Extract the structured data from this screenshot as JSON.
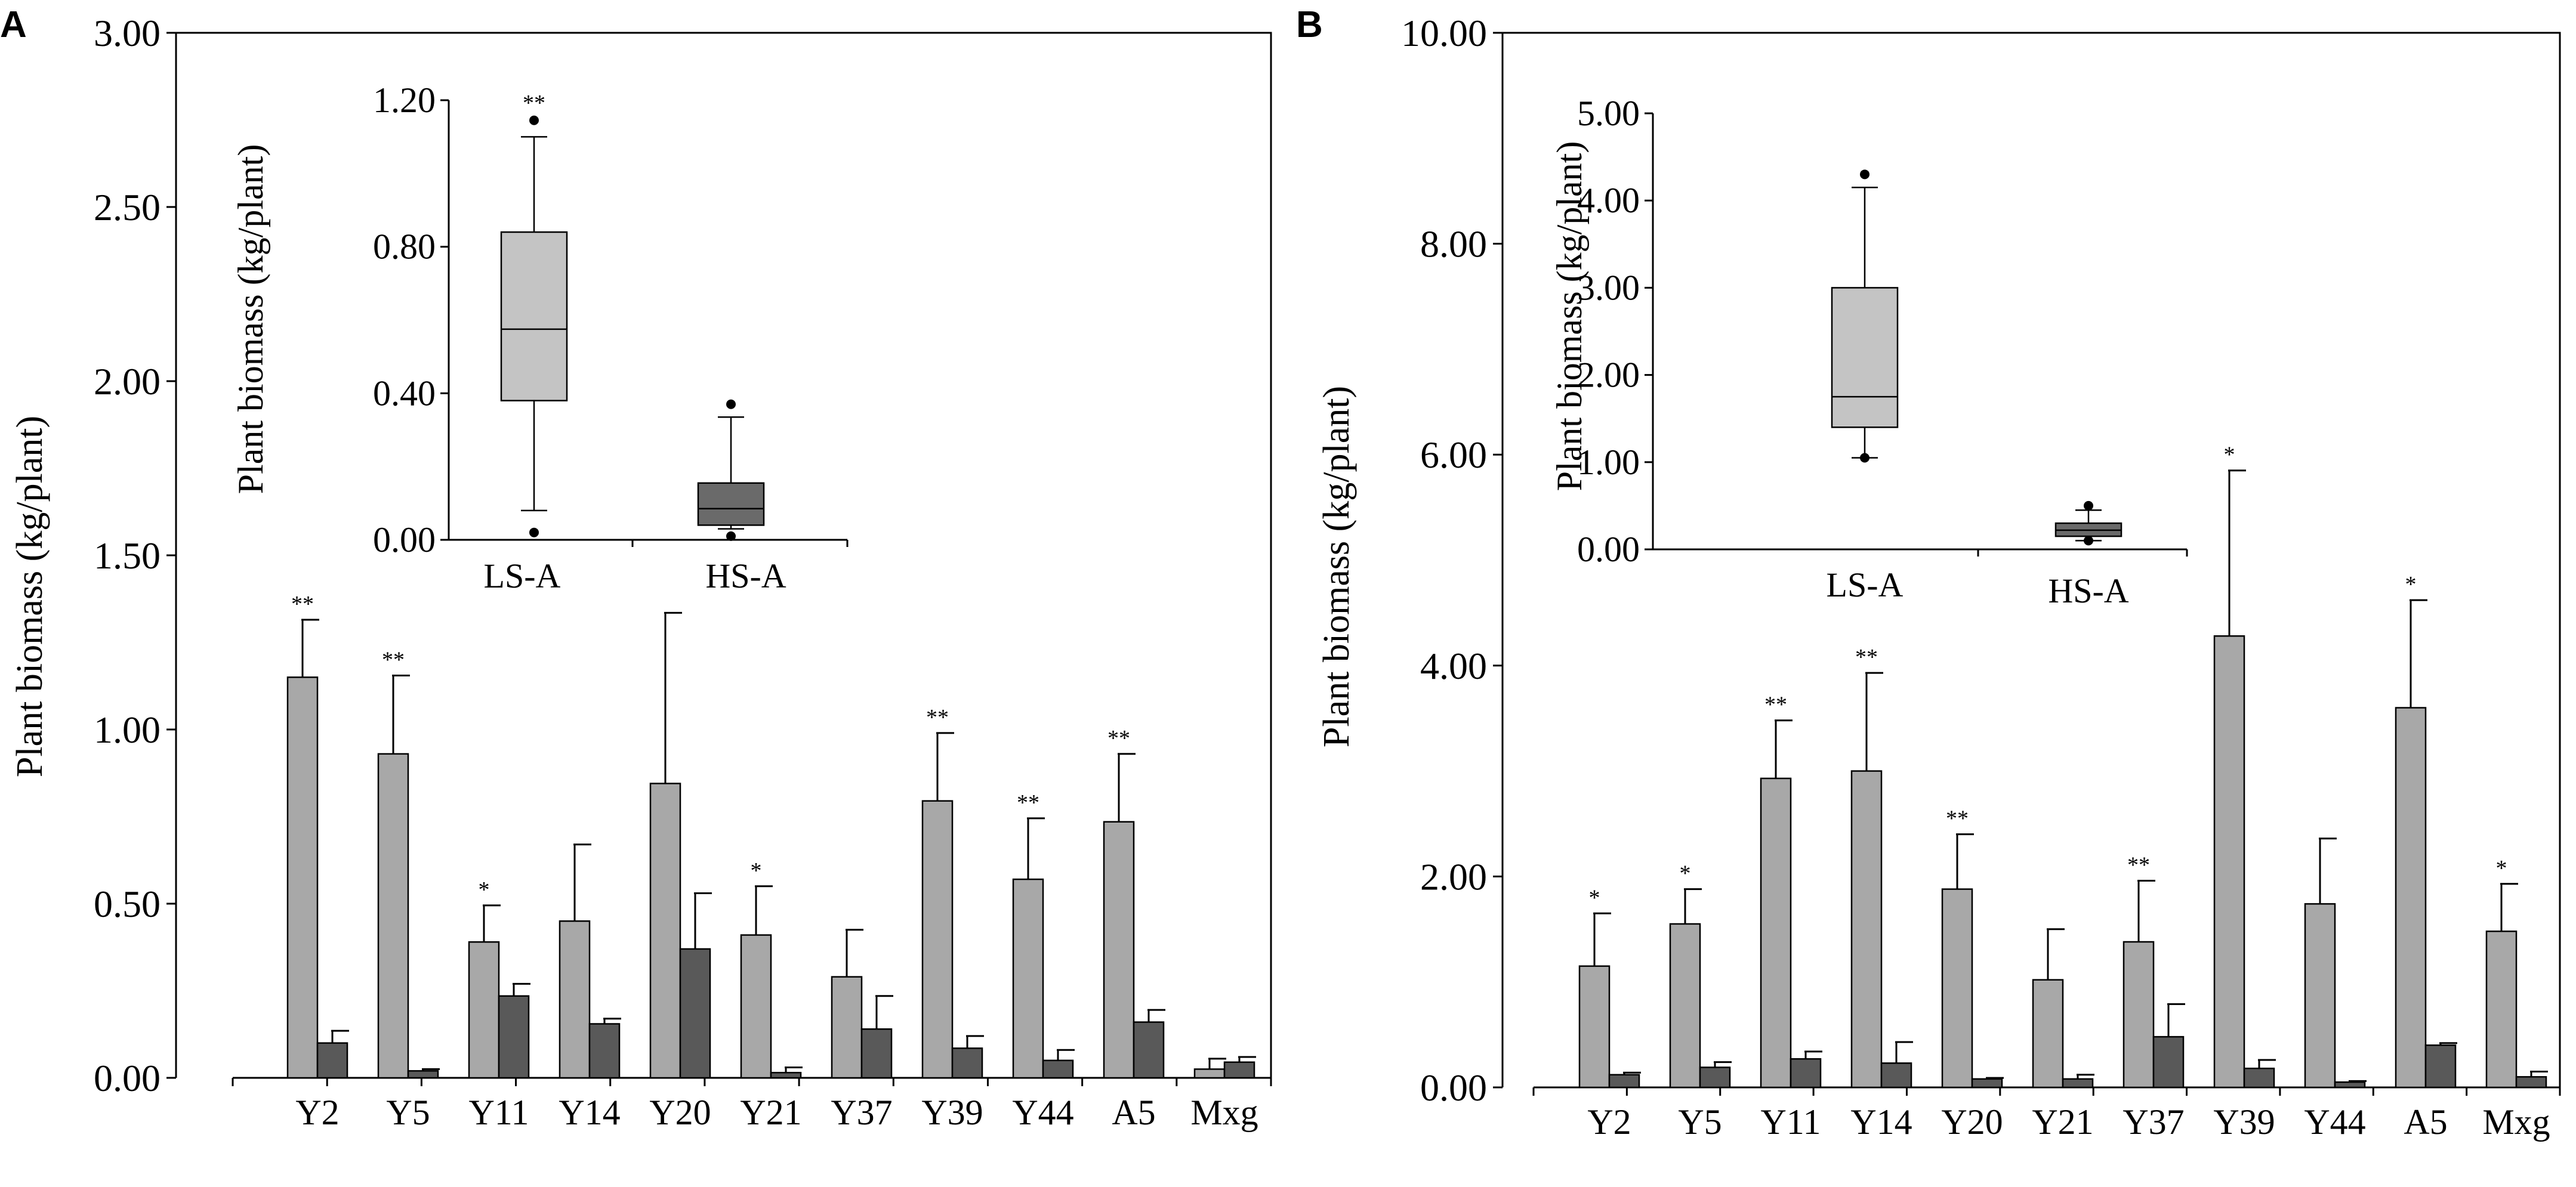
{
  "figure": {
    "colors": {
      "ls": "#a8a8a8",
      "hs": "#595959",
      "box_ls": "#c4c4c4",
      "box_hs": "#6a6a6a",
      "axis": "#000000"
    }
  },
  "chart_data": [
    {
      "panel": "A",
      "type": "bar",
      "ylabel": "Plant biomass  (kg/plant)",
      "ylim": [
        0,
        3
      ],
      "yticks": [
        "0.00",
        "0.50",
        "1.00",
        "1.50",
        "2.00",
        "2.50",
        "3.00"
      ],
      "categories": [
        "Y2",
        "Y5",
        "Y11",
        "Y14",
        "Y20",
        "Y21",
        "Y37",
        "Y39",
        "Y44",
        "A5",
        "Mxg"
      ],
      "series": [
        {
          "name": "LS-A",
          "values": [
            1.15,
            0.93,
            0.39,
            0.45,
            0.845,
            0.41,
            0.29,
            0.795,
            0.57,
            0.735,
            0.025
          ],
          "errors": [
            0.165,
            0.225,
            0.105,
            0.22,
            0.49,
            0.14,
            0.135,
            0.195,
            0.175,
            0.195,
            0.03
          ]
        },
        {
          "name": "HS-A",
          "values": [
            0.1,
            0.02,
            0.235,
            0.155,
            0.37,
            0.015,
            0.14,
            0.085,
            0.05,
            0.16,
            0.045
          ],
          "errors": [
            0.035,
            0.005,
            0.035,
            0.015,
            0.16,
            0.015,
            0.095,
            0.035,
            0.03,
            0.035,
            0.015
          ]
        }
      ],
      "significance": [
        "**",
        "**",
        "*",
        "",
        "",
        "*",
        "",
        "**",
        "**",
        "**",
        ""
      ],
      "inset": {
        "type": "box",
        "ylabel": "Plant biomass (kg/plant)",
        "ylim": [
          0,
          1.2
        ],
        "yticks": [
          "0.00",
          "0.40",
          "0.80",
          "1.20"
        ],
        "groups": [
          {
            "name": "LS-A",
            "whisker_low": 0.08,
            "q1": 0.38,
            "median": 0.575,
            "q3": 0.84,
            "whisker_high": 1.1,
            "outliers": [
              1.145,
              0.02
            ],
            "mark": "**"
          },
          {
            "name": "HS-A",
            "whisker_low": 0.03,
            "q1": 0.04,
            "median": 0.085,
            "q3": 0.155,
            "whisker_high": 0.335,
            "outliers": [
              0.37,
              0.01
            ],
            "mark": ""
          }
        ]
      }
    },
    {
      "panel": "B",
      "type": "bar",
      "ylabel": "Plant biomass (kg/plant)",
      "ylim": [
        0,
        10
      ],
      "yticks": [
        "0.00",
        "2.00",
        "4.00",
        "6.00",
        "8.00",
        "10.00"
      ],
      "categories": [
        "Y2",
        "Y5",
        "Y11",
        "Y14",
        "Y20",
        "Y21",
        "Y37",
        "Y39",
        "Y44",
        "A5",
        "Mxg"
      ],
      "series": [
        {
          "name": "LS-A",
          "values": [
            1.15,
            1.55,
            2.93,
            3.0,
            1.88,
            1.02,
            1.38,
            4.28,
            1.74,
            3.6,
            1.48
          ],
          "errors": [
            0.5,
            0.33,
            0.55,
            0.93,
            0.52,
            0.48,
            0.58,
            1.57,
            0.62,
            1.02,
            0.45
          ]
        },
        {
          "name": "HS-A",
          "values": [
            0.12,
            0.19,
            0.27,
            0.23,
            0.08,
            0.08,
            0.48,
            0.18,
            0.05,
            0.4,
            0.1
          ],
          "errors": [
            0.02,
            0.05,
            0.07,
            0.2,
            0.01,
            0.04,
            0.31,
            0.08,
            0.01,
            0.02,
            0.05
          ]
        }
      ],
      "significance": [
        "*",
        "*",
        "**",
        "**",
        "**",
        "",
        "**",
        "*",
        "",
        "*",
        "*"
      ],
      "inset": {
        "type": "box",
        "ylabel": "Plant biomass (kg/plant)",
        "ylim": [
          0,
          5
        ],
        "yticks": [
          "0.00",
          "1.00",
          "2.00",
          "3.00",
          "4.00",
          "5.00"
        ],
        "groups": [
          {
            "name": "LS-A",
            "whisker_low": 1.05,
            "q1": 1.4,
            "median": 1.75,
            "q3": 3.0,
            "whisker_high": 4.15,
            "outliers": [
              4.3,
              1.05
            ],
            "mark": ""
          },
          {
            "name": "HS-A",
            "whisker_low": 0.1,
            "q1": 0.15,
            "median": 0.22,
            "q3": 0.3,
            "whisker_high": 0.45,
            "outliers": [
              0.5,
              0.1
            ],
            "mark": ""
          }
        ]
      }
    }
  ]
}
